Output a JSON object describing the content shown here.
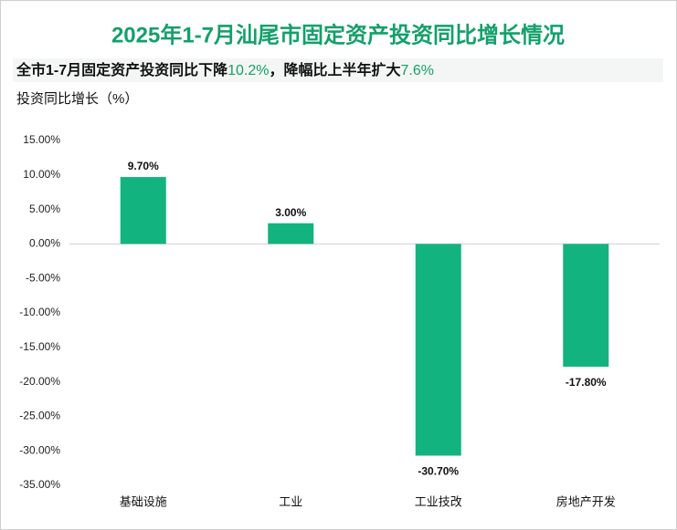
{
  "chart_data": {
    "type": "bar",
    "title": "2025年1-7月汕尾市固定资产投资同比增长情况",
    "subtitle": [
      "全市1-7月固定资产投资同比下降",
      "10.2%",
      "，降幅比上半年扩大",
      "7.6%"
    ],
    "y_label": "投资同比增长（%）",
    "categories": [
      "基础设施",
      "工业",
      "工业技改",
      "房地产开发"
    ],
    "values": [
      9.7,
      3.0,
      -30.7,
      -17.8
    ],
    "value_labels": [
      "9.70%",
      "3.00%",
      "-30.70%",
      "-17.80%"
    ],
    "color": "#12b37e",
    "title_color": "#14a06b",
    "highlight_color": "#14a06b",
    "ylim": [
      -35,
      15
    ],
    "yticks": [
      {
        "value": 15,
        "label": "15.00%"
      },
      {
        "value": 10,
        "label": "10.00%"
      },
      {
        "value": 5,
        "label": "5.00%"
      },
      {
        "value": 0,
        "label": "0.00%"
      },
      {
        "value": -5,
        "label": "-5.00%"
      },
      {
        "value": -10,
        "label": "-10.00%"
      },
      {
        "value": -15,
        "label": "-15.00%"
      },
      {
        "value": -20,
        "label": "-20.00%"
      },
      {
        "value": -25,
        "label": "-25.00%"
      },
      {
        "value": -30,
        "label": "-30.00%"
      },
      {
        "value": -35,
        "label": "-35.00%"
      }
    ],
    "grid": false
  }
}
